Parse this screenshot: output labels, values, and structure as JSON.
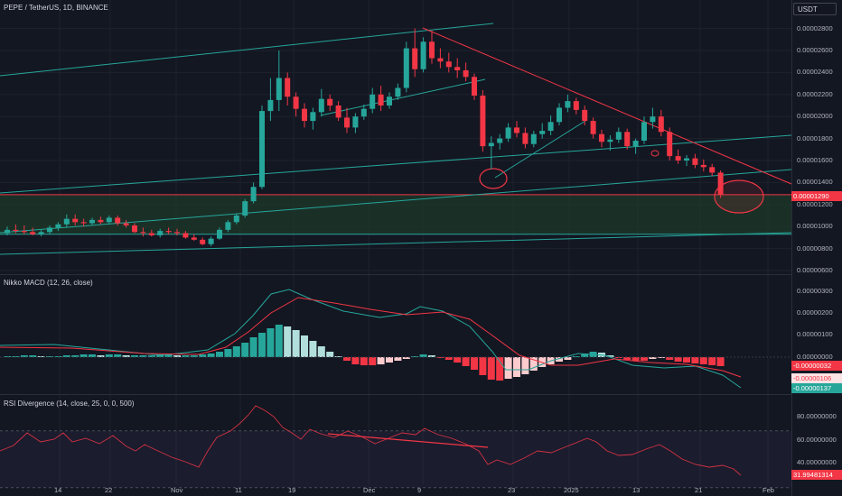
{
  "header": {
    "symbol": "PEPE / TetherUS, 1D, BINANCE",
    "currency_button": "USDT"
  },
  "price_pane": {
    "y_labels": [
      "0.00002800",
      "0.00002600",
      "0.00002400",
      "0.00002200",
      "0.00002000",
      "0.00001800",
      "0.00001600",
      "0.00001400",
      "0.00001200",
      "0.00001000",
      "0.00000800",
      "0.00000600"
    ],
    "last_price": "0.00001290",
    "colors": {
      "up": "#26a69a",
      "down": "#f23645",
      "trend": "#f23645",
      "channel": "#26a69a",
      "zone": "#1e3a2a"
    }
  },
  "macd_pane": {
    "title": "Nikko MACD (12, 26, close)",
    "y_labels": [
      "0.00000300",
      "0.00000200",
      "0.00000100",
      "0.00000000"
    ],
    "tags": [
      "-0.00000032",
      "-0.00000106",
      "-0.00000137"
    ]
  },
  "rsi_pane": {
    "title": "RSI Divergence (14, close, 25, 0, 0, 500)",
    "y_labels": [
      "80.00000000",
      "60.00000000",
      "40.00000000"
    ],
    "tag": "31.99481314"
  },
  "x_axis": {
    "labels": [
      "14",
      "22",
      "Nov",
      "11",
      "19",
      "Dec",
      "9",
      "23",
      "2025",
      "13",
      "21",
      "Feb"
    ]
  },
  "chart_data": {
    "type": "candlestick",
    "title": "PEPE / TetherUS, 1D, BINANCE",
    "ylim": [
      6e-06,
      2.92e-05
    ],
    "x_labels": [
      "14",
      "22",
      "Nov",
      "11",
      "19",
      "Dec",
      "9",
      "23",
      "2025",
      "13",
      "21",
      "Feb"
    ],
    "candles_ohlc": [
      [
        9.4e-06,
        1e-05,
        9.2e-06,
        9.7e-06
      ],
      [
        9.7e-06,
        1.02e-05,
        9.4e-06,
        9.6e-06
      ],
      [
        9.6e-06,
        1.01e-05,
        9.3e-06,
        9.5e-06
      ],
      [
        9.5e-06,
        9.9e-06,
        9.2e-06,
        9.3e-06
      ],
      [
        9.3e-06,
        9.7e-06,
        9.1e-06,
        9.5e-06
      ],
      [
        9.5e-06,
        1.01e-05,
        9.3e-06,
        9.9e-06
      ],
      [
        9.9e-06,
        1.04e-05,
        9.6e-06,
        1.02e-05
      ],
      [
        1.02e-05,
        1.11e-05,
        9.9e-06,
        1.07e-05
      ],
      [
        1.07e-05,
        1.11e-05,
        1.01e-05,
        1.04e-05
      ],
      [
        1.04e-05,
        1.07e-05,
        1e-05,
        1.03e-05
      ],
      [
        1.03e-05,
        1.08e-05,
        1.01e-05,
        1.06e-05
      ],
      [
        1.06e-05,
        1.09e-05,
        1.02e-05,
        1.04e-05
      ],
      [
        1.04e-05,
        1.1e-05,
        1.02e-05,
        1.08e-05
      ],
      [
        1.08e-05,
        1.1e-05,
        1.01e-05,
        1.03e-05
      ],
      [
        1.03e-05,
        1.06e-05,
        9.9e-06,
        1.01e-05
      ],
      [
        1.01e-05,
        1.03e-05,
        9.4e-06,
        9.5e-06
      ],
      [
        9.5e-06,
        9.9e-06,
        9.1e-06,
        9.4e-06
      ],
      [
        9.4e-06,
        9.7e-06,
        9.1e-06,
        9.2e-06
      ],
      [
        9.2e-06,
        9.8e-06,
        9e-06,
        9.6e-06
      ],
      [
        9.6e-06,
        9.9e-06,
        9.3e-06,
        9.5e-06
      ],
      [
        9.5e-06,
        9.8e-06,
        9.2e-06,
        9.4e-06
      ],
      [
        9.4e-06,
        9.6e-06,
        8.9e-06,
        9e-06
      ],
      [
        9e-06,
        9.3e-06,
        8.7e-06,
        8.8e-06
      ],
      [
        8.8e-06,
        9e-06,
        8.3e-06,
        8.4e-06
      ],
      [
        8.4e-06,
        9.1e-06,
        8.2e-06,
        8.9e-06
      ],
      [
        8.9e-06,
        9.9e-06,
        8.8e-06,
        9.7e-06
      ],
      [
        9.7e-06,
        1.06e-05,
        9.5e-06,
        1.04e-05
      ],
      [
        1.04e-05,
        1.12e-05,
        1.02e-05,
        1.1e-05
      ],
      [
        1.1e-05,
        1.25e-05,
        1.08e-05,
        1.23e-05
      ],
      [
        1.23e-05,
        1.4e-05,
        1.21e-05,
        1.36e-05
      ],
      [
        1.36e-05,
        2.1e-05,
        1.34e-05,
        2.05e-05
      ],
      [
        2.05e-05,
        2.35e-05,
        1.96e-05,
        2.15e-05
      ],
      [
        2.15e-05,
        2.6e-05,
        2.05e-05,
        2.35e-05
      ],
      [
        2.35e-05,
        2.4e-05,
        2.1e-05,
        2.18e-05
      ],
      [
        2.18e-05,
        2.22e-05,
        2e-05,
        2.07e-05
      ],
      [
        2.07e-05,
        2.12e-05,
        1.9e-05,
        1.96e-05
      ],
      [
        1.96e-05,
        2.08e-05,
        1.88e-05,
        2.04e-05
      ],
      [
        2.04e-05,
        2.25e-05,
        2e-05,
        2.16e-05
      ],
      [
        2.16e-05,
        2.2e-05,
        2.05e-05,
        2.1e-05
      ],
      [
        2.1e-05,
        2.14e-05,
        1.96e-05,
        1.99e-05
      ],
      [
        1.99e-05,
        2.08e-05,
        1.85e-05,
        1.9e-05
      ],
      [
        1.9e-05,
        2.03e-05,
        1.85e-05,
        2e-05
      ],
      [
        2e-05,
        2.11e-05,
        1.97e-05,
        2.07e-05
      ],
      [
        2.07e-05,
        2.26e-05,
        2.03e-05,
        2.2e-05
      ],
      [
        2.2e-05,
        2.28e-05,
        2.05e-05,
        2.1e-05
      ],
      [
        2.1e-05,
        2.22e-05,
        2.07e-05,
        2.18e-05
      ],
      [
        2.18e-05,
        2.3e-05,
        2.15e-05,
        2.26e-05
      ],
      [
        2.26e-05,
        2.68e-05,
        2.22e-05,
        2.62e-05
      ],
      [
        2.62e-05,
        2.8e-05,
        2.36e-05,
        2.43e-05
      ],
      [
        2.43e-05,
        2.72e-05,
        2.4e-05,
        2.68e-05
      ],
      [
        2.68e-05,
        2.78e-05,
        2.48e-05,
        2.53e-05
      ],
      [
        2.53e-05,
        2.62e-05,
        2.44e-05,
        2.5e-05
      ],
      [
        2.5e-05,
        2.58e-05,
        2.4e-05,
        2.45e-05
      ],
      [
        2.45e-05,
        2.53e-05,
        2.35e-05,
        2.42e-05
      ],
      [
        2.42e-05,
        2.49e-05,
        2.32e-05,
        2.36e-05
      ],
      [
        2.36e-05,
        2.39e-05,
        2.15e-05,
        2.19e-05
      ],
      [
        2.19e-05,
        2.24e-05,
        1.68e-05,
        1.73e-05
      ],
      [
        1.73e-05,
        1.82e-05,
        1.52e-05,
        1.76e-05
      ],
      [
        1.76e-05,
        1.84e-05,
        1.7e-05,
        1.8e-05
      ],
      [
        1.8e-05,
        1.94e-05,
        1.77e-05,
        1.9e-05
      ],
      [
        1.9e-05,
        1.96e-05,
        1.81e-05,
        1.85e-05
      ],
      [
        1.85e-05,
        1.9e-05,
        1.71e-05,
        1.75e-05
      ],
      [
        1.75e-05,
        1.87e-05,
        1.72e-05,
        1.84e-05
      ],
      [
        1.84e-05,
        1.94e-05,
        1.8e-05,
        1.87e-05
      ],
      [
        1.87e-05,
        2.01e-05,
        1.83e-05,
        1.95e-05
      ],
      [
        1.95e-05,
        2.12e-05,
        1.92e-05,
        2.08e-05
      ],
      [
        2.08e-05,
        2.2e-05,
        2.04e-05,
        2.14e-05
      ],
      [
        2.14e-05,
        2.17e-05,
        2.02e-05,
        2.06e-05
      ],
      [
        2.06e-05,
        2.1e-05,
        1.92e-05,
        1.96e-05
      ],
      [
        1.96e-05,
        1.99e-05,
        1.8e-05,
        1.84e-05
      ],
      [
        1.84e-05,
        1.88e-05,
        1.72e-05,
        1.77e-05
      ],
      [
        1.77e-05,
        1.83e-05,
        1.69e-05,
        1.79e-05
      ],
      [
        1.79e-05,
        1.9e-05,
        1.76e-05,
        1.86e-05
      ],
      [
        1.86e-05,
        1.89e-05,
        1.7e-05,
        1.73e-05
      ],
      [
        1.73e-05,
        1.8e-05,
        1.66e-05,
        1.78e-05
      ],
      [
        1.78e-05,
        2e-05,
        1.75e-05,
        1.95e-05
      ],
      [
        1.95e-05,
        2.08e-05,
        1.89e-05,
        2e-05
      ],
      [
        2e-05,
        2.06e-05,
        1.82e-05,
        1.86e-05
      ],
      [
        1.86e-05,
        1.9e-05,
        1.6e-05,
        1.64e-05
      ],
      [
        1.64e-05,
        1.7e-05,
        1.57e-05,
        1.6e-05
      ],
      [
        1.6e-05,
        1.65e-05,
        1.55e-05,
        1.62e-05
      ],
      [
        1.62e-05,
        1.66e-05,
        1.53e-05,
        1.56e-05
      ],
      [
        1.56e-05,
        1.61e-05,
        1.5e-05,
        1.54e-05
      ],
      [
        1.54e-05,
        1.57e-05,
        1.46e-05,
        1.49e-05
      ],
      [
        1.49e-05,
        1.51e-05,
        1.26e-05,
        1.29e-05
      ]
    ]
  }
}
